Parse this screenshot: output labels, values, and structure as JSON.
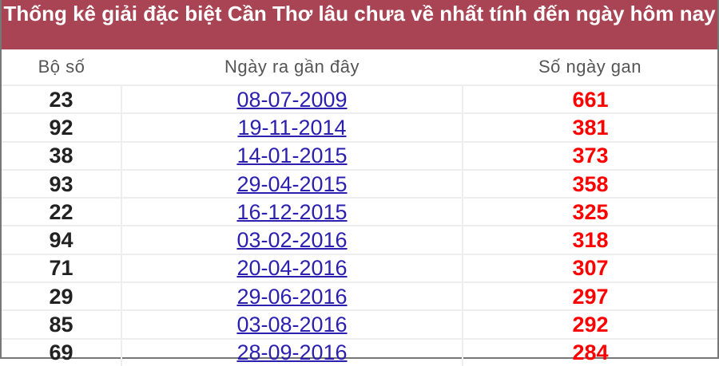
{
  "title": "Thống kê giải đặc biệt Cần Thơ lâu chưa về nhất tính đến ngày hôm nay",
  "columns": [
    "Bộ số",
    "Ngày ra gần đây",
    "Số ngày gan"
  ],
  "rows": [
    {
      "number": "23",
      "date": "08-07-2009",
      "days": "661"
    },
    {
      "number": "92",
      "date": "19-11-2014",
      "days": "381"
    },
    {
      "number": "38",
      "date": "14-01-2015",
      "days": "373"
    },
    {
      "number": "93",
      "date": "29-04-2015",
      "days": "358"
    },
    {
      "number": "22",
      "date": "16-12-2015",
      "days": "325"
    },
    {
      "number": "94",
      "date": "03-02-2016",
      "days": "318"
    },
    {
      "number": "71",
      "date": "20-04-2016",
      "days": "307"
    },
    {
      "number": "29",
      "date": "29-06-2016",
      "days": "297"
    },
    {
      "number": "85",
      "date": "03-08-2016",
      "days": "292"
    },
    {
      "number": "69",
      "date": "28-09-2016",
      "days": "284"
    }
  ],
  "colors": {
    "header_bg": "#a84453",
    "link": "#2b1fb0",
    "days": "#ff0000"
  }
}
